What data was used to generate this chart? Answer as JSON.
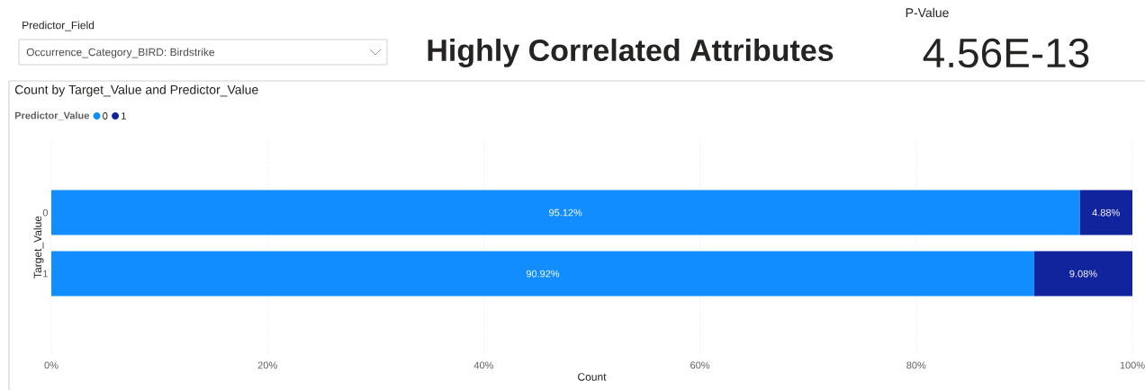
{
  "chart_data": {
    "type": "bar",
    "orientation": "horizontal",
    "stacked": true,
    "title": "Count by Target_Value and Predictor_Value",
    "annotations": [
      "Predictor_Field",
      "Occurrence_Category_BIRD: Birdstrike",
      "Highly Correlated Attributes",
      "P-Value",
      "4.56E-13"
    ],
    "xlabel": "Count",
    "ylabel": "Target_Value",
    "legend_title": "Predictor_Value",
    "legend": "top left",
    "categories": [
      "0",
      "1"
    ],
    "series": [
      {
        "name": "0",
        "color": "#118dff",
        "values": [
          95.12,
          90.92
        ],
        "value_labels": [
          "95.12%",
          "90.92%"
        ]
      },
      {
        "name": "1",
        "color": "#12239e",
        "values": [
          4.88,
          9.08
        ],
        "value_labels": [
          "4.88%",
          "9.08%"
        ]
      }
    ],
    "xlim": [
      0,
      100
    ],
    "xticks": [
      {
        "value": 0,
        "label": "0%"
      },
      {
        "value": 20,
        "label": "20%"
      },
      {
        "value": 40,
        "label": "40%"
      },
      {
        "value": 60,
        "label": "60%"
      },
      {
        "value": 80,
        "label": "80%"
      },
      {
        "value": 100,
        "label": "100%"
      }
    ],
    "grid": "x"
  }
}
